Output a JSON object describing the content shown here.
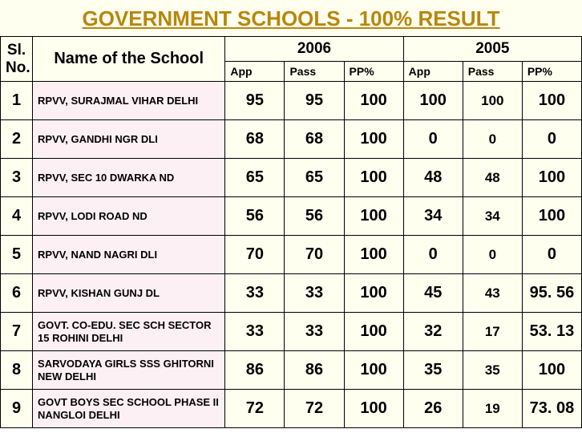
{
  "title": "GOVERNMENT SCHOOLS - 100% RESULT",
  "columns": {
    "sl": "Sl. No.",
    "name": "Name of the School",
    "year1": "2006",
    "year2": "2005",
    "sub": [
      "App",
      "Pass",
      "PP%",
      "App",
      "Pass",
      "PP%"
    ]
  },
  "rows": [
    {
      "sl": "1",
      "name": "RPVV, SURAJMAL VIHAR DELHI",
      "d": [
        "95",
        "95",
        "100",
        "100",
        "100",
        "100"
      ]
    },
    {
      "sl": "2",
      "name": "RPVV,  GANDHI NGR DLI",
      "d": [
        "68",
        "68",
        "100",
        "0",
        "0",
        "0"
      ]
    },
    {
      "sl": "3",
      "name": "RPVV, SEC 10 DWARKA ND",
      "d": [
        "65",
        "65",
        "100",
        "48",
        "48",
        "100"
      ]
    },
    {
      "sl": "4",
      "name": "RPVV, LODI ROAD ND",
      "d": [
        "56",
        "56",
        "100",
        "34",
        "34",
        "100"
      ]
    },
    {
      "sl": "5",
      "name": "RPVV,  NAND NAGRI DLI",
      "d": [
        "70",
        "70",
        "100",
        "0",
        "0",
        "0"
      ]
    },
    {
      "sl": "6",
      "name": "RPVV, KISHAN GUNJ DL",
      "d": [
        "33",
        "33",
        "100",
        "45",
        "43",
        "95. 56"
      ]
    },
    {
      "sl": "7",
      "name": "GOVT. CO-EDU. SEC SCH SECTOR 15 ROHINI DELHI",
      "d": [
        "33",
        "33",
        "100",
        "32",
        "17",
        "53. 13"
      ]
    },
    {
      "sl": "8",
      "name": "SARVODAYA GIRLS SSS GHITORNI NEW DELHI",
      "d": [
        "86",
        "86",
        "100",
        "35",
        "35",
        "100"
      ]
    },
    {
      "sl": "9",
      "name": "GOVT BOYS SEC SCHOOL PHASE II NANGLOI DELHI",
      "d": [
        "72",
        "72",
        "100",
        "26",
        "19",
        "73. 08"
      ]
    }
  ],
  "colors": {
    "title": "#b8860b",
    "header_bg": "#fffff0",
    "name_bg": "#fdf0f5",
    "border": "#000000"
  }
}
